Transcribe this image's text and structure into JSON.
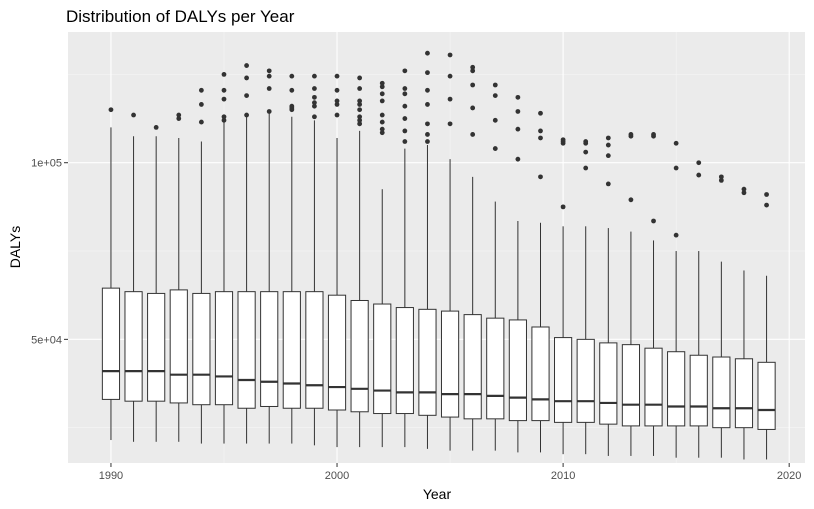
{
  "chart_data": {
    "type": "boxplot",
    "title": "Distribution of DALYs per Year",
    "xlabel": "Year",
    "ylabel": "DALYs",
    "x_ticks": [
      1990,
      2000,
      2010,
      2020
    ],
    "x_tick_labels": [
      "1990",
      "2000",
      "2010",
      "2020"
    ],
    "y_ticks": [
      50000,
      100000
    ],
    "y_tick_labels": [
      "5e+04",
      "1e+05"
    ],
    "xlim": [
      1988.1,
      2020.7
    ],
    "ylim": [
      15000,
      137000
    ],
    "grid": true,
    "background": "#EBEBEB",
    "box_fill": "#FFFFFF",
    "box_stroke": "#333333",
    "outlier_color": "#333333",
    "boxes": [
      {
        "year": 1990,
        "min": 21500,
        "q1": 33000,
        "median": 41000,
        "q3": 64500,
        "max": 110000,
        "outliers": [
          115000
        ]
      },
      {
        "year": 1991,
        "min": 21000,
        "q1": 32500,
        "median": 41000,
        "q3": 63500,
        "max": 107500,
        "outliers": [
          113500
        ]
      },
      {
        "year": 1992,
        "min": 21000,
        "q1": 32500,
        "median": 41000,
        "q3": 63000,
        "max": 107500,
        "outliers": [
          110000
        ]
      },
      {
        "year": 1993,
        "min": 21000,
        "q1": 32000,
        "median": 40000,
        "q3": 64000,
        "max": 107000,
        "outliers": [
          112500,
          113500
        ]
      },
      {
        "year": 1994,
        "min": 20500,
        "q1": 31500,
        "median": 40000,
        "q3": 63000,
        "max": 106000,
        "outliers": [
          111500,
          116500,
          120500
        ]
      },
      {
        "year": 1995,
        "min": 20500,
        "q1": 31500,
        "median": 39500,
        "q3": 63500,
        "max": 113000,
        "outliers": [
          112000,
          113000,
          118000,
          120500,
          125000
        ]
      },
      {
        "year": 1996,
        "min": 20500,
        "q1": 30500,
        "median": 38500,
        "q3": 63500,
        "max": 113000,
        "outliers": [
          113500,
          119000,
          124000,
          127500
        ]
      },
      {
        "year": 1997,
        "min": 20500,
        "q1": 31000,
        "median": 38000,
        "q3": 63500,
        "max": 114000,
        "outliers": [
          114500,
          121000,
          124500,
          126000
        ]
      },
      {
        "year": 1998,
        "min": 20500,
        "q1": 30500,
        "median": 37500,
        "q3": 63500,
        "max": 113000,
        "outliers": [
          115000,
          115500,
          116000,
          120500,
          124500
        ]
      },
      {
        "year": 1999,
        "min": 20000,
        "q1": 30500,
        "median": 37000,
        "q3": 63500,
        "max": 112000,
        "outliers": [
          113000,
          116000,
          117000,
          118500,
          121000,
          124500
        ]
      },
      {
        "year": 2000,
        "min": 19500,
        "q1": 30000,
        "median": 36500,
        "q3": 62500,
        "max": 107000,
        "outliers": [
          113500,
          116500,
          117500,
          120500,
          124500
        ]
      },
      {
        "year": 2001,
        "min": 19500,
        "q1": 29500,
        "median": 36000,
        "q3": 61000,
        "max": 109000,
        "outliers": [
          111000,
          112000,
          113000,
          115000,
          116500,
          117500,
          121000,
          124000
        ]
      },
      {
        "year": 2002,
        "min": 19500,
        "q1": 29000,
        "median": 35500,
        "q3": 60000,
        "max": 92500,
        "outliers": [
          108500,
          109500,
          111500,
          113500,
          117500,
          119500,
          121500,
          122500
        ]
      },
      {
        "year": 2003,
        "min": 19500,
        "q1": 29000,
        "median": 35000,
        "q3": 59000,
        "max": 104000,
        "outliers": [
          106000,
          109000,
          112500,
          116000,
          119500,
          121000,
          126000
        ]
      },
      {
        "year": 2004,
        "min": 19000,
        "q1": 28500,
        "median": 35000,
        "q3": 58500,
        "max": 105000,
        "outliers": [
          106000,
          108000,
          111000,
          116500,
          120500,
          125500,
          131000
        ]
      },
      {
        "year": 2005,
        "min": 18500,
        "q1": 28000,
        "median": 34500,
        "q3": 58000,
        "max": 101000,
        "outliers": [
          111000,
          118000,
          124500,
          130500
        ]
      },
      {
        "year": 2006,
        "min": 18500,
        "q1": 27500,
        "median": 34500,
        "q3": 57000,
        "max": 96000,
        "outliers": [
          108000,
          115500,
          122000,
          126000,
          127000
        ]
      },
      {
        "year": 2007,
        "min": 18500,
        "q1": 27500,
        "median": 34000,
        "q3": 56000,
        "max": 89000,
        "outliers": [
          104000,
          112000,
          119000,
          122000
        ]
      },
      {
        "year": 2008,
        "min": 18000,
        "q1": 27000,
        "median": 33500,
        "q3": 55500,
        "max": 83500,
        "outliers": [
          101000,
          109500,
          114500,
          118500
        ]
      },
      {
        "year": 2009,
        "min": 18000,
        "q1": 27000,
        "median": 33000,
        "q3": 53500,
        "max": 83000,
        "outliers": [
          96000,
          107000,
          109000,
          114000
        ]
      },
      {
        "year": 2010,
        "min": 17500,
        "q1": 26500,
        "median": 32500,
        "q3": 50500,
        "max": 82000,
        "outliers": [
          87500,
          105500,
          106000,
          106500
        ]
      },
      {
        "year": 2011,
        "min": 17500,
        "q1": 26500,
        "median": 32500,
        "q3": 50000,
        "max": 82000,
        "outliers": [
          98500,
          103000,
          105500,
          106000
        ]
      },
      {
        "year": 2012,
        "min": 17000,
        "q1": 26000,
        "median": 32000,
        "q3": 49000,
        "max": 81500,
        "outliers": [
          94000,
          102000,
          105000,
          107000
        ]
      },
      {
        "year": 2013,
        "min": 17000,
        "q1": 25500,
        "median": 31500,
        "q3": 48500,
        "max": 80500,
        "outliers": [
          89500,
          107500,
          108000
        ]
      },
      {
        "year": 2014,
        "min": 17000,
        "q1": 25500,
        "median": 31500,
        "q3": 47500,
        "max": 78000,
        "outliers": [
          83500,
          107500,
          108000
        ]
      },
      {
        "year": 2015,
        "min": 16500,
        "q1": 25500,
        "median": 31000,
        "q3": 46500,
        "max": 75000,
        "outliers": [
          79500,
          98500,
          105500
        ]
      },
      {
        "year": 2016,
        "min": 16500,
        "q1": 25500,
        "median": 31000,
        "q3": 45500,
        "max": 75000,
        "outliers": [
          96500,
          100000
        ]
      },
      {
        "year": 2017,
        "min": 16500,
        "q1": 25000,
        "median": 30500,
        "q3": 45000,
        "max": 72000,
        "outliers": [
          95000,
          96000
        ]
      },
      {
        "year": 2018,
        "min": 16000,
        "q1": 25000,
        "median": 30500,
        "q3": 44500,
        "max": 69500,
        "outliers": [
          91500,
          92500
        ]
      },
      {
        "year": 2019,
        "min": 16000,
        "q1": 24500,
        "median": 30000,
        "q3": 43500,
        "max": 68000,
        "outliers": [
          88000,
          91000
        ]
      }
    ]
  }
}
